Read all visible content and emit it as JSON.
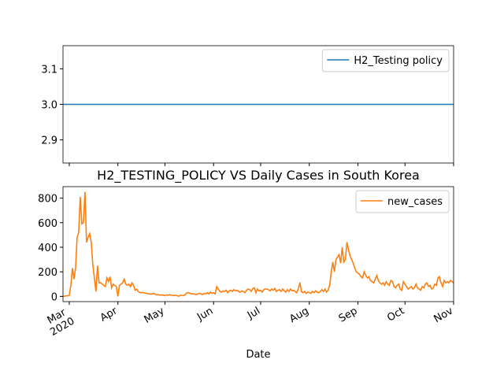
{
  "chart_data": [
    {
      "type": "line",
      "series": [
        {
          "name": "H2_Testing policy",
          "color": "#1f77b4",
          "values": [
            3,
            3,
            3,
            3,
            3,
            3,
            3,
            3,
            3,
            3,
            3,
            3,
            3,
            3,
            3,
            3,
            3,
            3,
            3,
            3,
            3,
            3,
            3,
            3,
            3,
            3,
            3,
            3,
            3,
            3,
            3,
            3,
            3,
            3,
            3,
            3,
            3,
            3,
            3,
            3,
            3,
            3,
            3,
            3,
            3,
            3,
            3,
            3,
            3,
            3,
            3,
            3,
            3,
            3,
            3,
            3,
            3,
            3,
            3,
            3,
            3,
            3,
            3,
            3,
            3,
            3,
            3,
            3,
            3,
            3,
            3,
            3,
            3,
            3,
            3,
            3,
            3,
            3,
            3,
            3,
            3,
            3,
            3,
            3,
            3,
            3,
            3,
            3,
            3,
            3,
            3,
            3,
            3,
            3,
            3,
            3,
            3,
            3,
            3,
            3,
            3,
            3,
            3,
            3,
            3,
            3,
            3,
            3,
            3,
            3,
            3,
            3,
            3,
            3,
            3,
            3,
            3,
            3,
            3,
            3,
            3,
            3,
            3,
            3,
            3,
            3,
            3,
            3,
            3,
            3,
            3,
            3,
            3,
            3,
            3,
            3,
            3,
            3,
            3,
            3,
            3,
            3,
            3,
            3,
            3,
            3,
            3,
            3,
            3,
            3,
            3,
            3,
            3,
            3,
            3,
            3,
            3,
            3,
            3,
            3,
            3,
            3,
            3,
            3,
            3,
            3,
            3,
            3,
            3,
            3,
            3,
            3,
            3,
            3,
            3,
            3,
            3,
            3,
            3,
            3,
            3,
            3,
            3,
            3,
            3,
            3,
            3,
            3,
            3,
            3,
            3,
            3,
            3,
            3,
            3,
            3,
            3,
            3,
            3,
            3,
            3,
            3,
            3,
            3,
            3,
            3,
            3,
            3,
            3,
            3,
            3,
            3,
            3,
            3,
            3,
            3,
            3,
            3,
            3,
            3,
            3,
            3,
            3,
            3,
            3,
            3,
            3,
            3,
            3,
            3,
            3,
            3,
            3,
            3,
            3,
            3,
            3,
            3,
            3,
            3,
            3,
            3,
            3,
            3,
            3,
            3,
            3,
            3,
            3,
            3,
            3
          ]
        }
      ],
      "xlim": [
        0,
        249
      ],
      "xticks": [
        4,
        35,
        65,
        96,
        126,
        157,
        188,
        218,
        249
      ],
      "ylim": [
        2.835,
        3.165
      ],
      "yticks": [
        2.9,
        {
          "value": 3,
          "label": "3.0"
        },
        3.1
      ],
      "legend": "upper right"
    },
    {
      "type": "line",
      "title": "H2_TESTING_POLICY VS Daily Cases in South Korea",
      "xlabel": "Date",
      "series": [
        {
          "name": "new_cases",
          "color": "#ff7f0e",
          "values": [
            0,
            2,
            4,
            5,
            10,
            90,
            230,
            140,
            230,
            480,
            520,
            810,
            590,
            600,
            851,
            440,
            480,
            510,
            440,
            260,
            150,
            40,
            250,
            110,
            110,
            100,
            90,
            80,
            150,
            120,
            160,
            70,
            100,
            90,
            80,
            0,
            90,
            100,
            110,
            140,
            100,
            90,
            100,
            80,
            110,
            90,
            50,
            60,
            40,
            30,
            30,
            32,
            27,
            25,
            22,
            20,
            18,
            20,
            25,
            15,
            12,
            14,
            10,
            12,
            10,
            8,
            12,
            10,
            14,
            10,
            8,
            6,
            10,
            4,
            2,
            10,
            8,
            6,
            15,
            30,
            30,
            25,
            20,
            22,
            18,
            15,
            20,
            25,
            20,
            15,
            25,
            20,
            30,
            20,
            35,
            25,
            30,
            20,
            80,
            60,
            40,
            35,
            45,
            40,
            50,
            30,
            45,
            50,
            40,
            55,
            45,
            50,
            40,
            35,
            45,
            40,
            30,
            50,
            60,
            55,
            40,
            65,
            70,
            30,
            60,
            45,
            50,
            35,
            55,
            60,
            60,
            55,
            45,
            60,
            50,
            65,
            40,
            50,
            55,
            40,
            60,
            45,
            35,
            55,
            40,
            60,
            45,
            50,
            40,
            30,
            60,
            113,
            40,
            30,
            40,
            25,
            35,
            30,
            25,
            40,
            30,
            45,
            35,
            30,
            40,
            55,
            40,
            60,
            35,
            50,
            90,
            200,
            280,
            200,
            300,
            320,
            340,
            270,
            400,
            280,
            300,
            441,
            380,
            330,
            300,
            270,
            230,
            200,
            190,
            180,
            160,
            150,
            200,
            170,
            150,
            160,
            130,
            120,
            110,
            140,
            170,
            130,
            110,
            100,
            110,
            90,
            120,
            100,
            90,
            130,
            120,
            80,
            70,
            90,
            100,
            60,
            50,
            120,
            100,
            80,
            60,
            70,
            80,
            60,
            70,
            100,
            70,
            60,
            50,
            80,
            70,
            100,
            110,
            80,
            90,
            60,
            70,
            100,
            90,
            150,
            160,
            110,
            80,
            130,
            110,
            120,
            110,
            130,
            120,
            110
          ]
        }
      ],
      "xlim": [
        0,
        249
      ],
      "xticks": [
        {
          "value": 4,
          "label": "Mar 2020"
        },
        {
          "value": 35,
          "label": "Apr"
        },
        {
          "value": 65,
          "label": "May"
        },
        {
          "value": 96,
          "label": "Jun"
        },
        {
          "value": 126,
          "label": "Jul"
        },
        {
          "value": 157,
          "label": "Aug"
        },
        {
          "value": 188,
          "label": "Sep"
        },
        {
          "value": 218,
          "label": "Oct"
        },
        {
          "value": 249,
          "label": "Nov"
        }
      ],
      "ylim": [
        -42.5,
        893.5
      ],
      "yticks": [
        0,
        200,
        400,
        600,
        800
      ],
      "legend": "upper right"
    }
  ]
}
